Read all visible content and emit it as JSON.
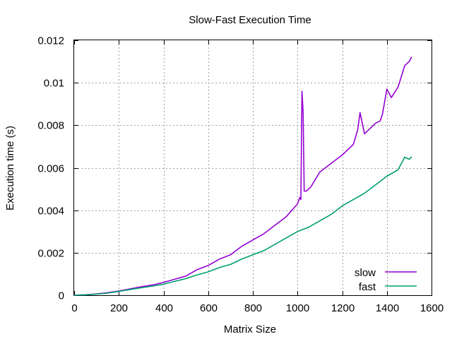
{
  "chart_data": {
    "type": "line",
    "title": "Slow-Fast Execution Time",
    "xlabel": "Matrix Size",
    "ylabel": "Execution time (s)",
    "xlim": [
      0,
      1600
    ],
    "ylim": [
      0,
      0.012
    ],
    "x_ticks": [
      "0",
      "200",
      "400",
      "600",
      "800",
      "1000",
      "1200",
      "1400",
      "1600"
    ],
    "y_ticks": [
      "0",
      "0.002",
      "0.004",
      "0.006",
      "0.008",
      "0.01",
      "0.012"
    ],
    "grid": true,
    "legend_position": "bottom-right",
    "series": [
      {
        "name": "slow",
        "color": "#9400d3",
        "x": [
          0,
          50,
          100,
          150,
          200,
          250,
          300,
          350,
          400,
          450,
          500,
          550,
          600,
          650,
          700,
          750,
          800,
          850,
          900,
          950,
          1000,
          1010,
          1015,
          1020,
          1025,
          1030,
          1040,
          1060,
          1100,
          1150,
          1200,
          1250,
          1270,
          1280,
          1300,
          1350,
          1370,
          1380,
          1400,
          1420,
          1450,
          1480,
          1500,
          1510
        ],
        "y": [
          0,
          2e-05,
          6e-05,
          0.00012,
          0.0002,
          0.0003,
          0.0004,
          0.00048,
          0.0006,
          0.00075,
          0.0009,
          0.0012,
          0.0014,
          0.0017,
          0.0019,
          0.0023,
          0.0026,
          0.0029,
          0.0033,
          0.0037,
          0.0043,
          0.0046,
          0.0045,
          0.0096,
          0.0086,
          0.0049,
          0.0049,
          0.0051,
          0.0058,
          0.0062,
          0.0066,
          0.0071,
          0.0078,
          0.0086,
          0.0076,
          0.0081,
          0.0082,
          0.0085,
          0.0097,
          0.0093,
          0.0098,
          0.0108,
          0.011,
          0.0112
        ]
      },
      {
        "name": "fast",
        "color": "#009e73",
        "x": [
          0,
          50,
          100,
          150,
          200,
          250,
          300,
          350,
          400,
          450,
          500,
          550,
          600,
          650,
          700,
          750,
          800,
          850,
          900,
          950,
          1000,
          1050,
          1100,
          1150,
          1200,
          1250,
          1300,
          1350,
          1400,
          1450,
          1480,
          1500,
          1510
        ],
        "y": [
          0,
          2e-05,
          5e-05,
          0.0001,
          0.00018,
          0.00027,
          0.00035,
          0.00043,
          0.00052,
          0.00065,
          0.00078,
          0.00095,
          0.0011,
          0.0013,
          0.00145,
          0.0017,
          0.0019,
          0.0021,
          0.0024,
          0.0027,
          0.003,
          0.0032,
          0.0035,
          0.0038,
          0.0042,
          0.0045,
          0.0048,
          0.0052,
          0.0056,
          0.0059,
          0.0065,
          0.0064,
          0.0065
        ]
      }
    ]
  }
}
